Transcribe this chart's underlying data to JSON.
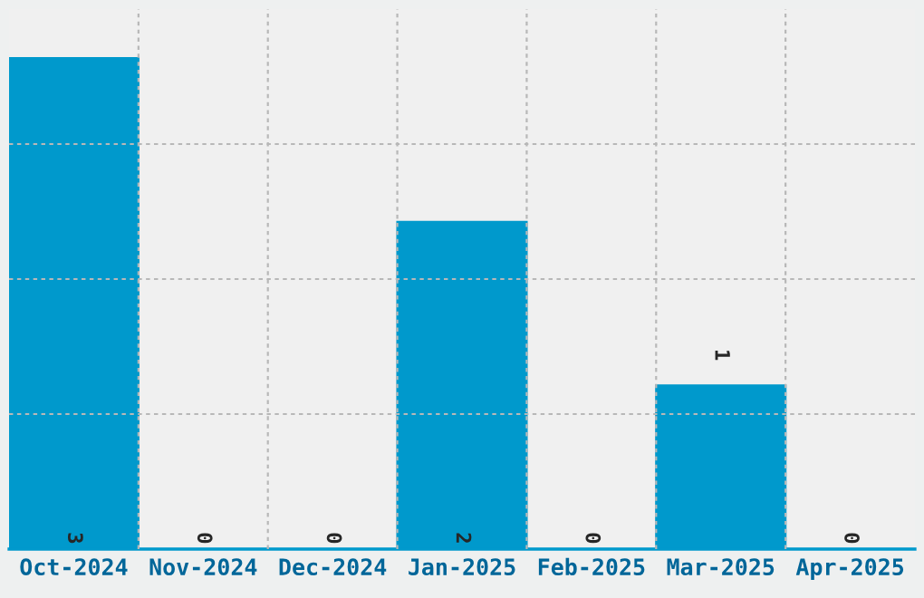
{
  "chart_data": {
    "type": "bar",
    "categories": [
      "Oct-2024",
      "Nov-2024",
      "Dec-2024",
      "Jan-2025",
      "Feb-2025",
      "Mar-2025",
      "Apr-2025"
    ],
    "values": [
      3,
      0,
      0,
      2,
      0,
      1,
      0
    ],
    "color": "#0099cc",
    "ylim": [
      0,
      3.3
    ],
    "yticks": [
      {
        "value": 0.825,
        "label": null
      },
      {
        "value": 1.65,
        "label": null
      },
      {
        "value": 2.475,
        "label": null
      }
    ],
    "tick_labels": "x",
    "grid": true,
    "data_labels": true
  }
}
